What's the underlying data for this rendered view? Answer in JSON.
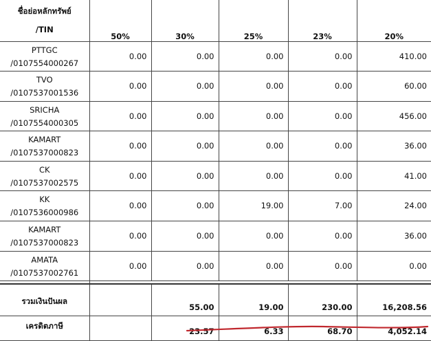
{
  "table": {
    "header": {
      "name_line1": "ชื่อย่อหลักทรัพย์",
      "name_line2": "/TIN",
      "rates": [
        "50%",
        "30%",
        "25%",
        "23%",
        "20%"
      ]
    },
    "rows": [
      {
        "symbol": "PTTGC",
        "tin": "/0107554000267",
        "values": [
          "0.00",
          "0.00",
          "0.00",
          "0.00",
          "410.00"
        ]
      },
      {
        "symbol": "TVO",
        "tin": "/0107537001536",
        "values": [
          "0.00",
          "0.00",
          "0.00",
          "0.00",
          "60.00"
        ]
      },
      {
        "symbol": "SRICHA",
        "tin": "/0107554000305",
        "values": [
          "0.00",
          "0.00",
          "0.00",
          "0.00",
          "456.00"
        ]
      },
      {
        "symbol": "KAMART",
        "tin": "/0107537000823",
        "values": [
          "0.00",
          "0.00",
          "0.00",
          "0.00",
          "36.00"
        ]
      },
      {
        "symbol": "CK",
        "tin": "/0107537002575",
        "values": [
          "0.00",
          "0.00",
          "0.00",
          "0.00",
          "41.00"
        ]
      },
      {
        "symbol": "KK",
        "tin": "/0107536000986",
        "values": [
          "0.00",
          "0.00",
          "19.00",
          "7.00",
          "24.00"
        ]
      },
      {
        "symbol": "KAMART",
        "tin": "/0107537000823",
        "values": [
          "0.00",
          "0.00",
          "0.00",
          "0.00",
          "36.00"
        ]
      },
      {
        "symbol": "AMATA",
        "tin": "/0107537002761",
        "values": [
          "0.00",
          "0.00",
          "0.00",
          "0.00",
          "0.00"
        ]
      }
    ],
    "totals": {
      "label": "รวมเงินปันผล",
      "values": [
        "",
        "55.00",
        "19.00",
        "230.00",
        "16,208.56"
      ]
    },
    "credit": {
      "label": "เครดิตภาษี",
      "values": [
        "",
        "23.57",
        "6.33",
        "68.70",
        "4,052.14"
      ]
    }
  },
  "annotation": {
    "underline_color": "#c0272d"
  }
}
